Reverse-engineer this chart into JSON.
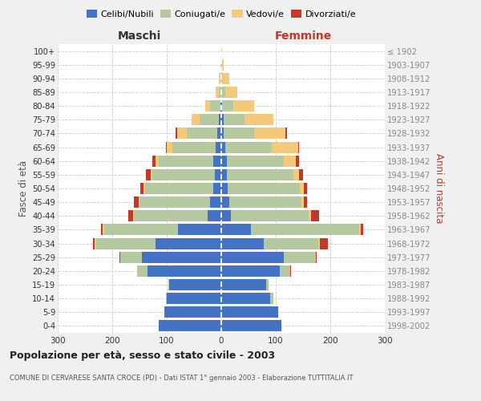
{
  "age_groups": [
    "0-4",
    "5-9",
    "10-14",
    "15-19",
    "20-24",
    "25-29",
    "30-34",
    "35-39",
    "40-44",
    "45-49",
    "50-54",
    "55-59",
    "60-64",
    "65-69",
    "70-74",
    "75-79",
    "80-84",
    "85-89",
    "90-94",
    "95-99",
    "100+"
  ],
  "birth_years": [
    "1998-2002",
    "1993-1997",
    "1988-1992",
    "1983-1987",
    "1978-1982",
    "1973-1977",
    "1968-1972",
    "1963-1967",
    "1958-1962",
    "1953-1957",
    "1948-1952",
    "1943-1947",
    "1938-1942",
    "1933-1937",
    "1928-1932",
    "1923-1927",
    "1918-1922",
    "1913-1917",
    "1908-1912",
    "1903-1907",
    "≤ 1902"
  ],
  "maschi": {
    "celibi": [
      115,
      105,
      100,
      95,
      135,
      145,
      120,
      80,
      25,
      20,
      14,
      12,
      15,
      10,
      8,
      5,
      2,
      0,
      0,
      0,
      0
    ],
    "coniugati": [
      0,
      0,
      2,
      2,
      20,
      40,
      110,
      135,
      135,
      130,
      125,
      115,
      100,
      80,
      55,
      35,
      18,
      5,
      2,
      1,
      0
    ],
    "vedovi": [
      0,
      0,
      0,
      0,
      0,
      0,
      2,
      2,
      2,
      2,
      3,
      3,
      5,
      10,
      18,
      15,
      10,
      6,
      2,
      0,
      0
    ],
    "divorziati": [
      0,
      0,
      0,
      0,
      0,
      2,
      4,
      4,
      8,
      8,
      6,
      8,
      6,
      2,
      3,
      0,
      0,
      0,
      0,
      0,
      0
    ]
  },
  "femmine": {
    "nubili": [
      110,
      105,
      90,
      82,
      108,
      115,
      78,
      55,
      18,
      15,
      12,
      10,
      10,
      8,
      5,
      5,
      2,
      0,
      0,
      0,
      0
    ],
    "coniugate": [
      0,
      0,
      5,
      5,
      18,
      58,
      100,
      198,
      142,
      132,
      132,
      122,
      105,
      85,
      55,
      38,
      20,
      8,
      3,
      1,
      0
    ],
    "vedove": [
      0,
      0,
      0,
      0,
      0,
      0,
      3,
      3,
      5,
      5,
      8,
      10,
      22,
      48,
      58,
      52,
      38,
      22,
      12,
      3,
      1
    ],
    "divorziate": [
      0,
      0,
      0,
      0,
      2,
      2,
      15,
      5,
      15,
      5,
      5,
      8,
      5,
      2,
      2,
      0,
      0,
      0,
      0,
      0,
      0
    ]
  },
  "colors": {
    "celibi": "#4472c4",
    "coniugati": "#b5c9a0",
    "vedovi": "#f5c97a",
    "divorziati": "#c0392b"
  },
  "xlim": 300,
  "title": "Popolazione per età, sesso e stato civile - 2003",
  "subtitle": "COMUNE DI CERVARESE SANTA CROCE (PD) - Dati ISTAT 1° gennaio 2003 - Elaborazione TUTTITALIA.IT",
  "ylabel_left": "Fasce di età",
  "ylabel_right": "Anni di nascita",
  "xlabel_left": "Maschi",
  "xlabel_right": "Femmine",
  "legend_labels": [
    "Celibi/Nubili",
    "Coniugati/e",
    "Vedovi/e",
    "Divorziati/e"
  ],
  "bg_color": "#f0f0f0",
  "plot_bg_color": "#ffffff"
}
